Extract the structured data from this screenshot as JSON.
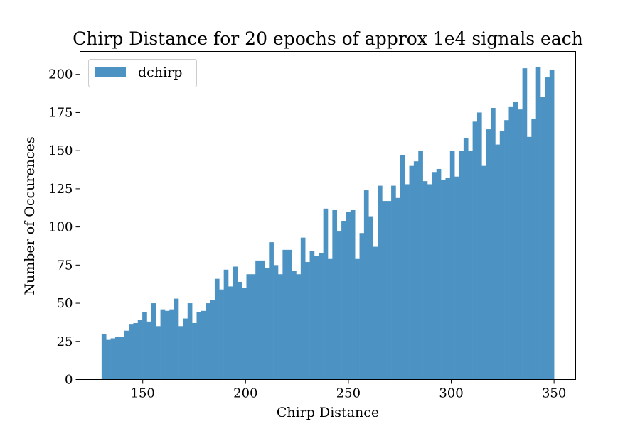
{
  "chart_data": {
    "type": "bar",
    "title": "Chirp Distance for 20 epochs of approx 1e4 signals each",
    "xlabel": "Chirp Distance",
    "ylabel": "Number of Occurences",
    "xlim": [
      119.5,
      360.5
    ],
    "ylim": [
      0,
      215
    ],
    "x_ticks": [
      150,
      200,
      250,
      300,
      350
    ],
    "y_ticks": [
      0,
      25,
      50,
      75,
      100,
      125,
      150,
      175,
      200
    ],
    "bin_start": 130,
    "bin_width": 2.2,
    "colors": {
      "bar": "#4c93c3"
    },
    "legend": {
      "placement": "top-left"
    },
    "series": [
      {
        "name": "dchirp",
        "values": [
          30,
          26,
          27,
          28,
          28,
          32,
          36,
          37,
          39,
          44,
          38,
          50,
          35,
          46,
          45,
          46,
          53,
          35,
          40,
          50,
          37,
          44,
          45,
          50,
          52,
          66,
          59,
          72,
          61,
          74,
          64,
          60,
          69,
          69,
          78,
          78,
          73,
          90,
          75,
          69,
          85,
          85,
          71,
          69,
          93,
          77,
          84,
          81,
          83,
          112,
          79,
          111,
          97,
          104,
          110,
          111,
          79,
          96,
          124,
          107,
          87,
          127,
          117,
          117,
          127,
          119,
          147,
          128,
          140,
          143,
          150,
          130,
          128,
          136,
          138,
          131,
          132,
          150,
          133,
          150,
          158,
          150,
          169,
          175,
          140,
          164,
          178,
          154,
          163,
          170,
          179,
          182,
          177,
          204,
          159,
          171,
          205,
          185,
          198,
          203
        ]
      }
    ]
  }
}
